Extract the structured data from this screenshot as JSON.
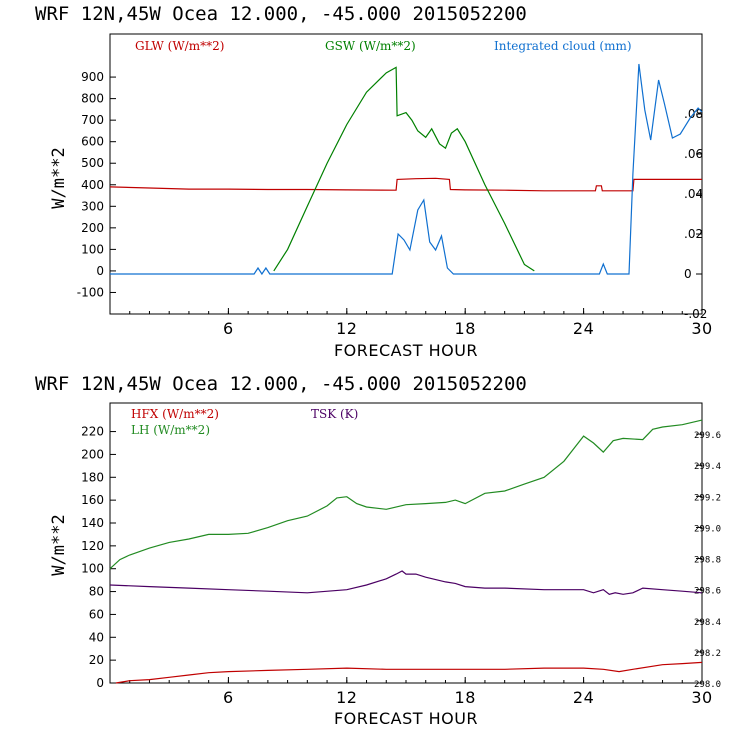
{
  "chart_data": [
    {
      "type": "line",
      "title": "WRF   12N,45W Ocea  12.000, -45.000  2015052200",
      "xlabel": "FORECAST HOUR",
      "ylabel": "W/m**2",
      "xlim": [
        0,
        30
      ],
      "ylim": [
        -200,
        1100
      ],
      "x_ticks": [
        6,
        12,
        18,
        24,
        30
      ],
      "y_ticks": [
        -100,
        0,
        100,
        200,
        300,
        400,
        500,
        600,
        700,
        800,
        900
      ],
      "y2lim": [
        -0.02,
        0.12
      ],
      "y2_ticks": [
        -0.02,
        0,
        0.02,
        0.04,
        0.06,
        0.08
      ],
      "y2_tick_labels": [
        "-.02",
        "0",
        ".02",
        ".04",
        ".06",
        ".08"
      ],
      "series": [
        {
          "name": "GLW (W/m**2)",
          "color": "#c00000",
          "axis": "left",
          "x": [
            0,
            2,
            4,
            6,
            8,
            10,
            12,
            14.5,
            14.55,
            15.5,
            16.5,
            17.2,
            17.25,
            18,
            20,
            22,
            24.6,
            24.65,
            24.9,
            24.95,
            26.5,
            26.55,
            30
          ],
          "y": [
            390,
            385,
            380,
            380,
            378,
            378,
            376,
            375,
            425,
            428,
            430,
            425,
            378,
            376,
            375,
            372,
            372,
            395,
            395,
            372,
            372,
            425,
            425
          ]
        },
        {
          "name": "GSW (W/m**2)",
          "color": "#008000",
          "axis": "left",
          "x": [
            8.3,
            9,
            10,
            11,
            12,
            13,
            14,
            14.5,
            14.55,
            15,
            15.3,
            15.6,
            16,
            16.3,
            16.7,
            17,
            17.3,
            17.6,
            18,
            19,
            20,
            21,
            21.5
          ],
          "y": [
            0,
            100,
            300,
            500,
            680,
            830,
            920,
            945,
            720,
            735,
            700,
            650,
            620,
            660,
            590,
            570,
            640,
            660,
            600,
            400,
            220,
            30,
            0
          ]
        },
        {
          "name": "Integrated cloud (mm)",
          "color": "#1070d0",
          "axis": "right",
          "x": [
            0,
            7.3,
            7.5,
            7.7,
            7.9,
            8.1,
            8.3,
            14.3,
            14.6,
            14.9,
            15.2,
            15.6,
            15.9,
            16.2,
            16.5,
            16.8,
            17.1,
            17.4,
            17.7,
            18,
            24.8,
            25,
            25.2,
            26.3,
            26.5,
            26.8,
            27.1,
            27.4,
            27.8,
            28.1,
            28.5,
            28.9,
            29.4,
            29.8,
            30
          ],
          "y": [
            0,
            0,
            0.003,
            0,
            0.003,
            0,
            0,
            0,
            0.02,
            0.017,
            0.012,
            0.032,
            0.037,
            0.016,
            0.012,
            0.019,
            0.003,
            0,
            0,
            0,
            0,
            0.005,
            0,
            0,
            0.05,
            0.105,
            0.082,
            0.067,
            0.097,
            0.085,
            0.068,
            0.07,
            0.078,
            0.083,
            0.081
          ]
        }
      ]
    },
    {
      "type": "line",
      "title": "WRF   12N,45W Ocea  12.000, -45.000  2015052200",
      "xlabel": "FORECAST HOUR",
      "ylabel": "W/m**2",
      "xlim": [
        0,
        30
      ],
      "ylim": [
        0,
        245
      ],
      "x_ticks": [
        6,
        12,
        18,
        24,
        30
      ],
      "y_ticks": [
        0,
        20,
        40,
        60,
        80,
        100,
        120,
        140,
        160,
        180,
        200,
        220
      ],
      "y2lim": [
        298.0,
        299.8
      ],
      "y2_ticks": [
        298.0,
        298.2,
        298.4,
        298.6,
        298.8,
        299.0,
        299.2,
        299.4,
        299.6
      ],
      "y2_tick_labels": [
        "298.0",
        "298.2",
        "298.4",
        "298.6",
        "298.8",
        "299.0",
        "299.2",
        "299.4",
        "299.6"
      ],
      "series": [
        {
          "name": "HFX (W/m**2)",
          "color": "#c00000",
          "axis": "left",
          "x": [
            0.3,
            1,
            2,
            3,
            4,
            5,
            6,
            8,
            10,
            12,
            14,
            16,
            18,
            20,
            22,
            24,
            25,
            25.8,
            26.5,
            28,
            29,
            30
          ],
          "y": [
            0,
            2,
            3,
            5,
            7,
            9,
            10,
            11,
            12,
            13,
            12,
            12,
            12,
            12,
            13,
            13,
            12,
            10,
            12,
            16,
            17,
            18
          ]
        },
        {
          "name": "LH  (W/m**2)",
          "color": "#228b22",
          "axis": "left",
          "x": [
            0,
            0.5,
            1,
            2,
            3,
            4,
            5,
            6,
            7,
            8,
            9,
            10,
            11,
            11.5,
            12,
            12.5,
            13,
            14,
            15,
            16,
            17,
            17.5,
            18,
            19,
            20,
            21,
            22,
            23,
            23.5,
            24,
            24.5,
            25,
            25.5,
            26,
            27,
            27.5,
            28,
            29,
            30
          ],
          "y": [
            100,
            108,
            112,
            118,
            123,
            126,
            130,
            130,
            131,
            136,
            142,
            146,
            155,
            162,
            163,
            157,
            154,
            152,
            156,
            157,
            158,
            160,
            157,
            166,
            168,
            174,
            180,
            194,
            205,
            216,
            210,
            202,
            212,
            214,
            213,
            222,
            224,
            226,
            230
          ]
        },
        {
          "name": "TSK (K)",
          "color": "#4b0064",
          "axis": "right",
          "x": [
            0,
            2,
            4,
            6,
            8,
            10,
            12,
            13,
            14,
            14.5,
            14.8,
            15,
            15.5,
            16,
            17,
            17.5,
            18,
            19,
            20,
            22,
            24,
            24.5,
            25,
            25.3,
            25.6,
            26,
            26.5,
            27,
            28,
            29,
            30
          ],
          "y": [
            298.63,
            298.62,
            298.61,
            298.6,
            298.59,
            298.58,
            298.6,
            298.63,
            298.67,
            298.7,
            298.72,
            298.7,
            298.7,
            298.68,
            298.65,
            298.64,
            298.62,
            298.61,
            298.61,
            298.6,
            298.6,
            298.58,
            298.6,
            298.57,
            298.58,
            298.57,
            298.58,
            298.61,
            298.6,
            298.59,
            298.58
          ]
        }
      ]
    }
  ]
}
